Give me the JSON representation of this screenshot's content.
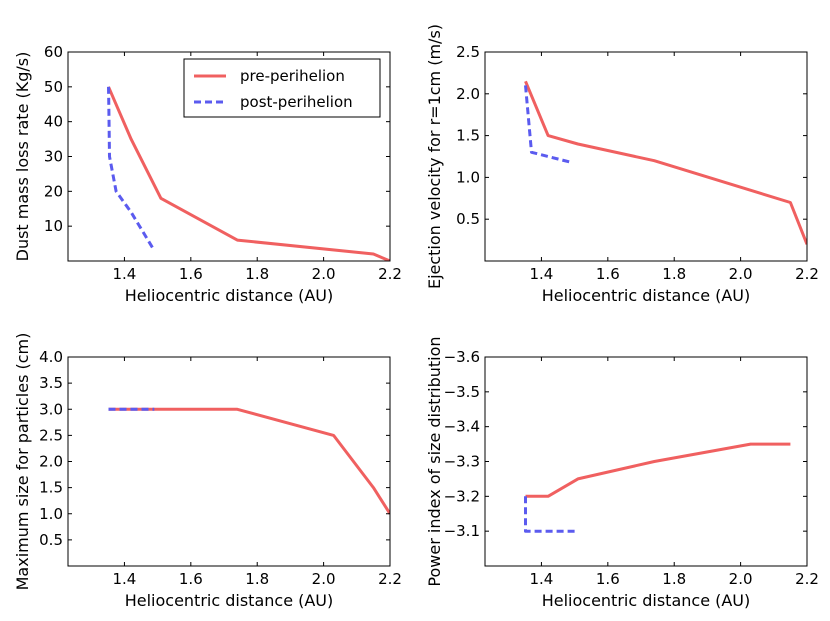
{
  "colors": {
    "pre": "#f06060",
    "post": "#5b5bef"
  },
  "legend": {
    "pre_label": "pre-perihelion",
    "post_label": "post-perihelion",
    "placement": "upper-right",
    "panel": 0
  },
  "chart_data": [
    {
      "type": "line",
      "xlabel": "Heliocentric distance (AU)",
      "ylabel": "Dust mass loss rate (Kg/s)",
      "xlim": [
        1.23,
        2.2
      ],
      "ylim": [
        0,
        60
      ],
      "invert_y": false,
      "xticks": [
        1.4,
        1.6,
        1.8,
        2.0,
        2.2
      ],
      "yticks": [
        10,
        20,
        30,
        40,
        50,
        60
      ],
      "xtick_labels": [
        "1.4",
        "1.6",
        "1.8",
        "2.0",
        "2.2"
      ],
      "ytick_labels": [
        "10",
        "20",
        "30",
        "40",
        "50",
        "60"
      ],
      "series": [
        {
          "name": "pre-perihelion",
          "style": "solid",
          "x": [
            1.352,
            1.42,
            1.51,
            1.74,
            2.15,
            2.2
          ],
          "y": [
            50,
            35,
            18,
            6,
            2,
            0
          ]
        },
        {
          "name": "post-perihelion",
          "style": "dashed",
          "x": [
            1.352,
            1.353,
            1.355,
            1.375,
            1.42,
            1.49
          ],
          "y": [
            50,
            45,
            30,
            20,
            14,
            3
          ]
        }
      ]
    },
    {
      "type": "line",
      "xlabel": "Heliocentric distance (AU)",
      "ylabel": "Ejection velocity for r=1cm (m/s)",
      "xlim": [
        1.23,
        2.2
      ],
      "ylim": [
        0,
        2.5
      ],
      "invert_y": false,
      "xticks": [
        1.4,
        1.6,
        1.8,
        2.0,
        2.2
      ],
      "yticks": [
        0.5,
        1.0,
        1.5,
        2.0,
        2.5
      ],
      "xtick_labels": [
        "1.4",
        "1.6",
        "1.8",
        "2.0",
        "2.2"
      ],
      "ytick_labels": [
        "0.5",
        "1.0",
        "1.5",
        "2.0",
        "2.5"
      ],
      "series": [
        {
          "name": "pre-perihelion",
          "style": "solid",
          "x": [
            1.352,
            1.42,
            1.51,
            1.74,
            2.15,
            2.2
          ],
          "y": [
            2.15,
            1.5,
            1.4,
            1.2,
            0.7,
            0.2
          ]
        },
        {
          "name": "post-perihelion",
          "style": "dashed",
          "x": [
            1.352,
            1.37,
            1.42,
            1.49
          ],
          "y": [
            2.1,
            1.3,
            1.25,
            1.18
          ]
        }
      ]
    },
    {
      "type": "line",
      "xlabel": "Heliocentric distance (AU)",
      "ylabel": "Maximum size for particles (cm)",
      "xlim": [
        1.23,
        2.2
      ],
      "ylim": [
        0,
        4
      ],
      "invert_y": false,
      "xticks": [
        1.4,
        1.6,
        1.8,
        2.0,
        2.2
      ],
      "yticks": [
        0.5,
        1.0,
        1.5,
        2.0,
        2.5,
        3.0,
        3.5,
        4.0
      ],
      "xtick_labels": [
        "1.4",
        "1.6",
        "1.8",
        "2.0",
        "2.2"
      ],
      "ytick_labels": [
        "0.5",
        "1.0",
        "1.5",
        "2.0",
        "2.5",
        "3.0",
        "3.5",
        "4.0"
      ],
      "series": [
        {
          "name": "pre-perihelion",
          "style": "solid",
          "x": [
            1.352,
            1.74,
            2.03,
            2.15,
            2.2
          ],
          "y": [
            3.0,
            3.0,
            2.5,
            1.5,
            1.0
          ]
        },
        {
          "name": "post-perihelion",
          "style": "dashed",
          "x": [
            1.352,
            1.49
          ],
          "y": [
            3.0,
            3.0
          ]
        }
      ]
    },
    {
      "type": "line",
      "xlabel": "Heliocentric distance (AU)",
      "ylabel": "Power index of size distribution",
      "xlim": [
        1.23,
        2.2
      ],
      "ylim": [
        -3.0,
        -3.6
      ],
      "invert_y": true,
      "xticks": [
        1.4,
        1.6,
        1.8,
        2.0,
        2.2
      ],
      "yticks": [
        -3.1,
        -3.2,
        -3.3,
        -3.4,
        -3.5,
        -3.6
      ],
      "xtick_labels": [
        "1.4",
        "1.6",
        "1.8",
        "2.0",
        "2.2"
      ],
      "ytick_labels": [
        "−3.1",
        "−3.2",
        "−3.3",
        "−3.4",
        "−3.5",
        "−3.6"
      ],
      "series": [
        {
          "name": "pre-perihelion",
          "style": "solid",
          "x": [
            1.352,
            1.42,
            1.51,
            1.74,
            2.03,
            2.15
          ],
          "y": [
            -3.2,
            -3.2,
            -3.25,
            -3.3,
            -3.35,
            -3.35
          ]
        },
        {
          "name": "post-perihelion",
          "style": "dashed",
          "x": [
            1.352,
            1.352,
            1.51
          ],
          "y": [
            -3.2,
            -3.1,
            -3.1
          ]
        }
      ]
    }
  ]
}
